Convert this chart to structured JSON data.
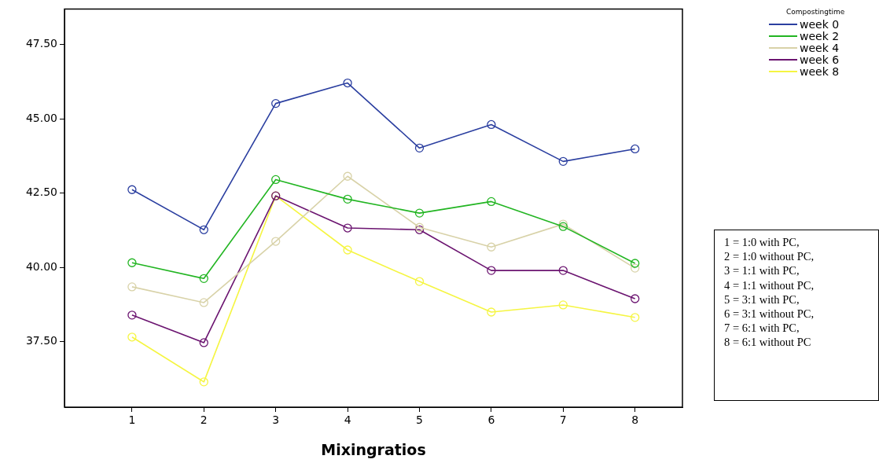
{
  "chart_data": {
    "type": "line",
    "xlabel": "Mixingratios",
    "legend_title": "Compostingtime",
    "legend": "top right",
    "grid": false,
    "marker": "circle",
    "line_style": "solid",
    "x": [
      1,
      2,
      3,
      4,
      5,
      6,
      7,
      8
    ],
    "xlim": [
      0.06,
      8.66
    ],
    "xticks": [
      1,
      2,
      3,
      4,
      5,
      6,
      7,
      8
    ],
    "ylim": [
      35.3,
      48.7
    ],
    "yticks": [
      {
        "value": 37.5,
        "label": "37.50"
      },
      {
        "value": 40,
        "label": "40.00"
      },
      {
        "value": 42.5,
        "label": "42.50"
      },
      {
        "value": 45,
        "label": "45.00"
      },
      {
        "value": 47.5,
        "label": "47.50"
      }
    ],
    "series": [
      {
        "name": "week 0",
        "color": "#2b3fa0",
        "values": [
          42.62,
          41.27,
          45.52,
          46.21,
          44.02,
          44.81,
          43.57,
          43.99
        ]
      },
      {
        "name": "week 2",
        "color": "#22b522",
        "values": [
          40.16,
          39.63,
          42.96,
          42.3,
          41.83,
          42.22,
          41.38,
          40.14
        ]
      },
      {
        "name": "week 4",
        "color": "#d8d2a8",
        "values": [
          39.35,
          38.82,
          40.88,
          43.07,
          41.35,
          40.69,
          41.46,
          39.98
        ]
      },
      {
        "name": "week 6",
        "color": "#6b1470",
        "values": [
          38.4,
          37.47,
          42.41,
          41.33,
          41.27,
          39.9,
          39.9,
          38.95
        ]
      },
      {
        "name": "week 8",
        "color": "#f5f542",
        "values": [
          37.66,
          36.15,
          42.41,
          40.59,
          39.53,
          38.5,
          38.74,
          38.32
        ]
      }
    ],
    "annotations": [
      "1 = 1:0 with PC,\n2 = 1:0 without PC,\n3 = 1:1 with PC,\n4 = 1:1 without PC,\n5 = 3:1 with PC,\n6 = 3:1 without PC,\n7 = 6:1 with PC,\n8 = 6:1 without PC"
    ]
  }
}
